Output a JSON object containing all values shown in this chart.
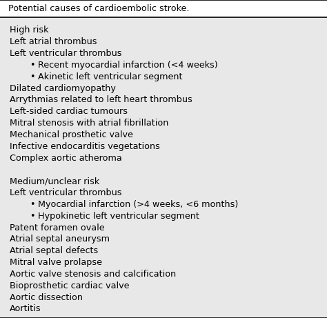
{
  "title": "Potential causes of cardioembolic stroke.",
  "bg_color": "#e8e8e8",
  "title_bg": "#ffffff",
  "text_color": "#000000",
  "font_size": 9.2,
  "title_font_size": 9.2,
  "lines": [
    {
      "text": "High risk",
      "indent": 0,
      "bullet": false
    },
    {
      "text": "Left atrial thrombus",
      "indent": 0,
      "bullet": false
    },
    {
      "text": "Left ventricular thrombus",
      "indent": 0,
      "bullet": false
    },
    {
      "text": "Recent myocardial infarction (<4 weeks)",
      "indent": 1,
      "bullet": true
    },
    {
      "text": "Akinetic left ventricular segment",
      "indent": 1,
      "bullet": true
    },
    {
      "text": "Dilated cardiomyopathy",
      "indent": 0,
      "bullet": false
    },
    {
      "text": "Arrythmias related to left heart thrombus",
      "indent": 0,
      "bullet": false
    },
    {
      "text": "Left-sided cardiac tumours",
      "indent": 0,
      "bullet": false
    },
    {
      "text": "Mitral stenosis with atrial fibrillation",
      "indent": 0,
      "bullet": false
    },
    {
      "text": "Mechanical prosthetic valve",
      "indent": 0,
      "bullet": false
    },
    {
      "text": "Infective endocarditis vegetations",
      "indent": 0,
      "bullet": false
    },
    {
      "text": "Complex aortic atheroma",
      "indent": 0,
      "bullet": false
    },
    {
      "text": "",
      "indent": 0,
      "bullet": false
    },
    {
      "text": "Medium/unclear risk",
      "indent": 0,
      "bullet": false
    },
    {
      "text": "Left ventricular thrombus",
      "indent": 0,
      "bullet": false
    },
    {
      "text": "Myocardial infarction (>4 weeks, <6 months)",
      "indent": 1,
      "bullet": true
    },
    {
      "text": "Hypokinetic left ventricular segment",
      "indent": 1,
      "bullet": true
    },
    {
      "text": "Patent foramen ovale",
      "indent": 0,
      "bullet": false
    },
    {
      "text": "Atrial septal aneurysm",
      "indent": 0,
      "bullet": false
    },
    {
      "text": "Atrial septal defects",
      "indent": 0,
      "bullet": false
    },
    {
      "text": "Mitral valve prolapse",
      "indent": 0,
      "bullet": false
    },
    {
      "text": "Aortic valve stenosis and calcification",
      "indent": 0,
      "bullet": false
    },
    {
      "text": "Bioprosthetic cardiac valve",
      "indent": 0,
      "bullet": false
    },
    {
      "text": "Aortic dissection",
      "indent": 0,
      "bullet": false
    },
    {
      "text": "Aortitis",
      "indent": 0,
      "bullet": false
    }
  ]
}
